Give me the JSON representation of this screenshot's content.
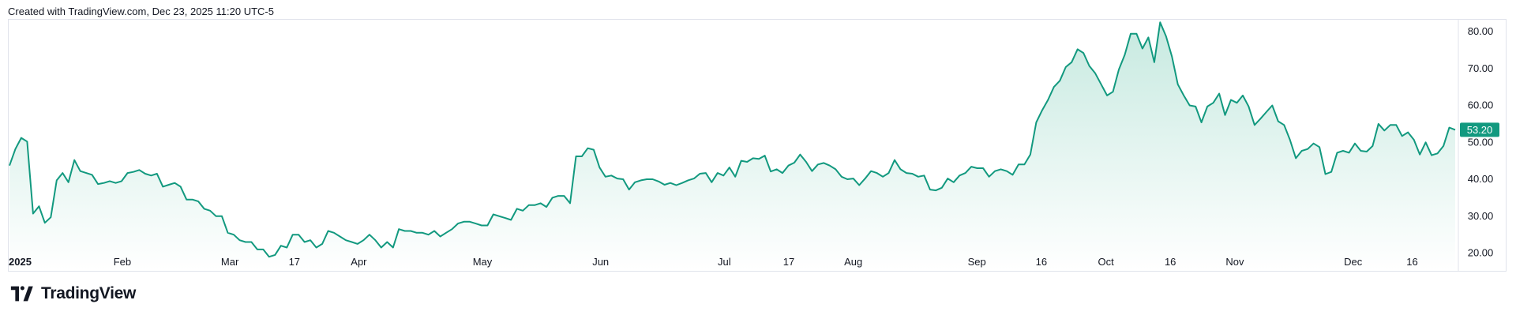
{
  "header": {
    "created_text": "Created with TradingView.com, Dec 23, 2025 11:20 UTC-5"
  },
  "branding": {
    "logo_text": "TradingView",
    "logo_icon": "tradingview-logo-icon"
  },
  "colors": {
    "line": "#12997f",
    "area_top": "#c3e8de",
    "area_bottom": "#ffffff",
    "price_tag": "#12997f",
    "grid_border": "#e0e3eb"
  },
  "chart_data": {
    "type": "area",
    "title": "",
    "x_range": [
      0,
      269
    ],
    "ylim": [
      15,
      83
    ],
    "y_ticks": [
      "80.00",
      "70.00",
      "60.00",
      "50.00",
      "40.00",
      "30.00",
      "20.00"
    ],
    "y_tick_values": [
      80,
      70,
      60,
      50,
      40,
      30,
      20
    ],
    "x_ticks": [
      {
        "label": "2025",
        "x": 0,
        "bold": true
      },
      {
        "label": "Feb",
        "x": 21
      },
      {
        "label": "Mar",
        "x": 41
      },
      {
        "label": "17",
        "x": 53
      },
      {
        "label": "Apr",
        "x": 65
      },
      {
        "label": "May",
        "x": 88
      },
      {
        "label": "Jun",
        "x": 110
      },
      {
        "label": "Jul",
        "x": 133
      },
      {
        "label": "17",
        "x": 145
      },
      {
        "label": "Aug",
        "x": 157
      },
      {
        "label": "Sep",
        "x": 180
      },
      {
        "label": "16",
        "x": 192
      },
      {
        "label": "Oct",
        "x": 204
      },
      {
        "label": "16",
        "x": 216
      },
      {
        "label": "Nov",
        "x": 228
      },
      {
        "label": "Dec",
        "x": 250
      },
      {
        "label": "16",
        "x": 261
      }
    ],
    "last_price": "53.20",
    "values": [
      43.5,
      48,
      51,
      50,
      30.5,
      32.5,
      28,
      29.5,
      39.5,
      41.5,
      39,
      45,
      42,
      41.5,
      41,
      38.5,
      38.8,
      39.3,
      38.8,
      39.3,
      41.5,
      41.8,
      42.3,
      41.3,
      40.8,
      41.3,
      37.8,
      38.3,
      38.8,
      37.8,
      34.3,
      34.3,
      33.8,
      31.8,
      31.3,
      29.8,
      29.8,
      25.3,
      24.8,
      23.3,
      22.8,
      22.8,
      20.8,
      20.8,
      18.8,
      19.3,
      21.8,
      21.3,
      24.8,
      24.8,
      22.8,
      23.3,
      21.3,
      22.3,
      25.8,
      25.3,
      24.3,
      23.3,
      22.8,
      22.3,
      23.3,
      24.8,
      23.3,
      21.3,
      22.8,
      21.3,
      26.3,
      25.8,
      25.8,
      25.3,
      25.3,
      24.8,
      25.8,
      24.3,
      25.3,
      26.3,
      27.8,
      28.3,
      28.3,
      27.8,
      27.3,
      27.3,
      30.3,
      29.8,
      29.3,
      28.8,
      31.8,
      31.3,
      32.8,
      32.8,
      33.3,
      32.3,
      34.8,
      35.3,
      35.3,
      33.3,
      46,
      46,
      48.2,
      47.8,
      43,
      40.5,
      40.8,
      40,
      39.8,
      37,
      39,
      39.5,
      39.8,
      39.8,
      39.2,
      38.3,
      38.8,
      38.2,
      38.8,
      39.5,
      40,
      41.3,
      41.5,
      39,
      41.5,
      40.8,
      43,
      40.5,
      44.8,
      44.5,
      45.5,
      45.3,
      46.2,
      41.9,
      42.5,
      41.5,
      43.5,
      44.3,
      46.5,
      44.5,
      42,
      43.8,
      44.2,
      43.5,
      42.5,
      40.5,
      39.8,
      40,
      38.2,
      40,
      42,
      41.5,
      40.5,
      41.5,
      45,
      42.5,
      41.5,
      41.3,
      40.5,
      40.8,
      37,
      36.8,
      37.5,
      40,
      39,
      40.8,
      41.5,
      43.2,
      42.8,
      42.8,
      40.5,
      42,
      42.5,
      42,
      41,
      43.8,
      43.8,
      46.5,
      55.2,
      58.5,
      61.3,
      64.8,
      66.5,
      70.2,
      71.5,
      75,
      74,
      70.5,
      68.5,
      65.5,
      62.5,
      63.5,
      69.5,
      73.5,
      79.2,
      79.2,
      75.2,
      78.2,
      71.5,
      82.3,
      78.5,
      73,
      65.5,
      62.5,
      59.8,
      59.5,
      55.2,
      59.5,
      60.5,
      63,
      57.2,
      61.3,
      60.5,
      62.5,
      59.5,
      54.5,
      56.2,
      58,
      59.8,
      55.5,
      54.5,
      50.5,
      45.5,
      47.5,
      48,
      49.5,
      48.5,
      41.2,
      41.8,
      47,
      47.5,
      47,
      49.5,
      47.5,
      47.3,
      48.8,
      54.8,
      53,
      54.5,
      54.5,
      51.5,
      52.5,
      50.5,
      46.5,
      49.8,
      46.3,
      46.8,
      48.8,
      53.8,
      53.2
    ]
  }
}
